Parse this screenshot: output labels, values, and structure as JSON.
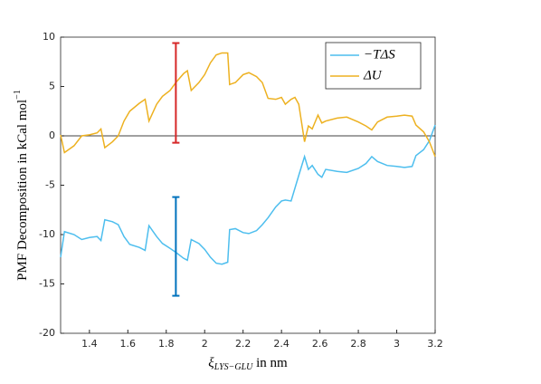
{
  "chart_data": {
    "type": "line",
    "ylabel": "PMF Decomposition in kCal mol",
    "ylabel_sup": "−1",
    "xlabel": "ξ",
    "xlabel_sub": "LYS−GLU",
    "xlabel_suffix": " in nm",
    "x": [
      1.25,
      1.27,
      1.32,
      1.36,
      1.4,
      1.44,
      1.46,
      1.48,
      1.52,
      1.55,
      1.58,
      1.61,
      1.66,
      1.69,
      1.71,
      1.75,
      1.78,
      1.82,
      1.85,
      1.89,
      1.91,
      1.93,
      1.97,
      2.0,
      2.03,
      2.06,
      2.09,
      2.12,
      2.13,
      2.16,
      2.2,
      2.23,
      2.27,
      2.3,
      2.33,
      2.37,
      2.4,
      2.42,
      2.45,
      2.47,
      2.49,
      2.52,
      2.54,
      2.56,
      2.59,
      2.61,
      2.63,
      2.69,
      2.74,
      2.8,
      2.84,
      2.87,
      2.9,
      2.95,
      3.0,
      3.04,
      3.08,
      3.1,
      3.14,
      3.17,
      3.2
    ],
    "series": [
      {
        "name": "−TΔS",
        "color": "#4dbeee",
        "values": [
          -12.3,
          -9.7,
          -10.0,
          -10.5,
          -10.3,
          -10.2,
          -10.6,
          -8.5,
          -8.7,
          -9.0,
          -10.2,
          -11.0,
          -11.3,
          -11.6,
          -9.1,
          -10.2,
          -10.9,
          -11.4,
          -11.8,
          -12.4,
          -12.6,
          -10.5,
          -10.9,
          -11.5,
          -12.3,
          -12.9,
          -13.0,
          -12.8,
          -9.5,
          -9.4,
          -9.8,
          -9.9,
          -9.6,
          -9.0,
          -8.3,
          -7.2,
          -6.6,
          -6.5,
          -6.6,
          -5.3,
          -4.0,
          -2.1,
          -3.4,
          -3.0,
          -3.9,
          -4.2,
          -3.4,
          -3.6,
          -3.7,
          -3.3,
          -2.8,
          -2.1,
          -2.6,
          -3.0,
          -3.1,
          -3.2,
          -3.1,
          -2.0,
          -1.4,
          -0.5,
          1.1
        ]
      },
      {
        "name": "ΔU",
        "color": "#edb120",
        "values": [
          0.1,
          -1.7,
          -1.0,
          0.0,
          0.1,
          0.3,
          0.7,
          -1.2,
          -0.6,
          0.0,
          1.5,
          2.5,
          3.3,
          3.7,
          1.5,
          3.2,
          4.0,
          4.6,
          5.4,
          6.3,
          6.6,
          4.6,
          5.4,
          6.2,
          7.4,
          8.2,
          8.4,
          8.4,
          5.2,
          5.4,
          6.2,
          6.4,
          6.0,
          5.4,
          3.8,
          3.7,
          3.9,
          3.2,
          3.7,
          3.9,
          3.2,
          -0.6,
          1.0,
          0.7,
          2.1,
          1.3,
          1.5,
          1.8,
          1.9,
          1.4,
          1.0,
          0.6,
          1.4,
          1.9,
          2.0,
          2.1,
          2.0,
          1.1,
          0.4,
          -0.6,
          -2.1
        ]
      }
    ],
    "error_bars": [
      {
        "x": 1.85,
        "low": -0.7,
        "high": 9.4,
        "color": "#d62728"
      },
      {
        "x": 1.85,
        "low": -16.2,
        "high": -6.2,
        "color": "#0072bd"
      }
    ],
    "xlim": [
      1.25,
      3.2
    ],
    "ylim": [
      -20,
      10
    ],
    "xticks": [
      1.4,
      1.6,
      1.8,
      2,
      2.2,
      2.4,
      2.6,
      2.8,
      3,
      3.2
    ],
    "yticks": [
      -20,
      -15,
      -10,
      -5,
      0,
      5,
      10
    ],
    "zero_line": true,
    "legend": "upper right"
  }
}
